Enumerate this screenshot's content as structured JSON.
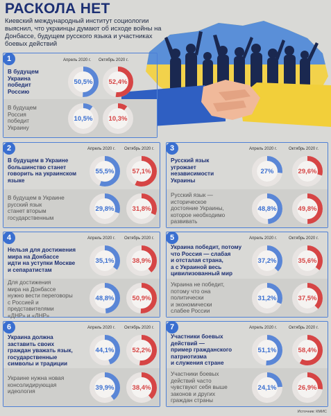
{
  "header": {
    "title": "РАСКОЛА НЕТ",
    "subtitle": "Киевский международный институт социологии выяснил, что украинцы думают об исходе войны на Донбассе, будущем русского языка и участниках боевых действий"
  },
  "source": "Источник: КМИС",
  "colors": {
    "april": "#5a86d6",
    "october": "#d64545",
    "track": "#e8e4e2",
    "border": "#4d7fd6"
  },
  "chart_data": [
    {
      "type": "pie",
      "number": "1",
      "periods": [
        "Апрель 2020 г.",
        "Октябрь 2020 г."
      ],
      "rows": [
        {
          "statement": "В будущем\nУкраина\nпобедит\nРоссию",
          "values": [
            50.5,
            52.4
          ],
          "labels": [
            "50,5%",
            "52,4%"
          ]
        },
        {
          "statement": "В будущем\nРоссия\nпобедит\nУкраину",
          "values": [
            10.5,
            10.3
          ],
          "labels": [
            "10,5%",
            "10,3%"
          ]
        }
      ]
    },
    {
      "type": "pie",
      "number": "2",
      "periods": [
        "Апрель 2020 г.",
        "Октябрь 2020 г."
      ],
      "rows": [
        {
          "statement": "В будущем в Украине\nбольшинство станет\nговорить на украинском\nязыке",
          "values": [
            55.5,
            57.1
          ],
          "labels": [
            "55,5%",
            "57,1%"
          ]
        },
        {
          "statement": "В будущем в Украине\nрусский язык\nстанет вторым\nгосударственным",
          "values": [
            29.8,
            31.8
          ],
          "labels": [
            "29,8%",
            "31,8%"
          ]
        }
      ]
    },
    {
      "type": "pie",
      "number": "3",
      "periods": [
        "Апрель 2020 г.",
        "Октябрь 2020 г."
      ],
      "rows": [
        {
          "statement": "Русский язык\nугрожает\nнезависимости\nУкраины",
          "values": [
            27,
            29.6
          ],
          "labels": [
            "27%",
            "29,6%"
          ]
        },
        {
          "statement": "Русский язык —\nисторическое\nдостояние Украины,\nкоторое необходимо\nразвивать",
          "values": [
            48.8,
            49.8
          ],
          "labels": [
            "48,8%",
            "49,8%"
          ]
        }
      ]
    },
    {
      "type": "pie",
      "number": "4",
      "periods": [
        "Апрель 2020 г.",
        "Октябрь 2020 г."
      ],
      "rows": [
        {
          "statement": "Нельзя для достижения\nмира на Донбассе\nидти на уступки Москве\nи сепаратистам",
          "values": [
            35.1,
            38.9
          ],
          "labels": [
            "35,1%",
            "38,9%"
          ]
        },
        {
          "statement": "Для достижения\nмира на Донбассе\nнужно вести переговоры\nс Россией и\nпредставителями\n«ДНР» и «ЛНР»",
          "values": [
            48.8,
            50.9
          ],
          "labels": [
            "48,8%",
            "50,9%"
          ]
        }
      ]
    },
    {
      "type": "pie",
      "number": "5",
      "periods": [
        "Апрель 2020 г.",
        "Октябрь 2020 г."
      ],
      "rows": [
        {
          "statement": "Украина победит, потому\nчто Россия — слабая\nи отсталая страна,\nа с Украиной весь\nцивилизованный мир",
          "values": [
            37.2,
            35.6
          ],
          "labels": [
            "37,2%",
            "35,6%"
          ]
        },
        {
          "statement": "Украина не победит,\nпотому что она\nполитически\nи экономически\nслабее России",
          "values": [
            31.2,
            37.5
          ],
          "labels": [
            "31,2%",
            "37,5%"
          ]
        }
      ]
    },
    {
      "type": "pie",
      "number": "6",
      "periods": [
        "Апрель 2020 г.",
        "Октябрь 2020 г."
      ],
      "rows": [
        {
          "statement": "Украина должна\nзаставить своих\nграждан уважать язык,\nгосударственные\nсимволы и традиции",
          "values": [
            44.1,
            52.2
          ],
          "labels": [
            "44,1%",
            "52,2%"
          ]
        },
        {
          "statement": "Украине нужна новая\nконсолидирующая\nидеология",
          "values": [
            39.9,
            38.4
          ],
          "labels": [
            "39,9%",
            "38,4%"
          ]
        }
      ]
    },
    {
      "type": "pie",
      "number": "7",
      "periods": [
        "Апрель 2020 г.",
        "Октябрь 2020 г."
      ],
      "rows": [
        {
          "statement": "Участники боевых\nдействий —\nпример гражданского\nпатриотизма\nи служения стране",
          "values": [
            51.1,
            58.4
          ],
          "labels": [
            "51,1%",
            "58,4%"
          ]
        },
        {
          "statement": "Участники боевых\nдействий часто\nчувствуют себя выше\nзаконов и других\nграждан страны",
          "values": [
            24.1,
            26.9
          ],
          "labels": [
            "24,1%",
            "26,9%"
          ]
        }
      ]
    }
  ]
}
